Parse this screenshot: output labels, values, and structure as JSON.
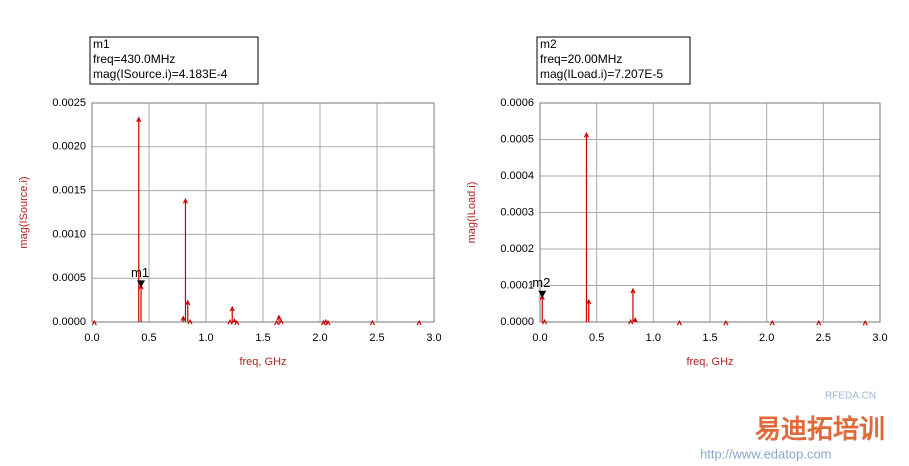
{
  "chart_data": [
    {
      "type": "stem",
      "y_label": "mag(ISource.i)",
      "x_label": "freq, GHz",
      "xlim": [
        0,
        3
      ],
      "ylim": [
        0,
        0.0025
      ],
      "grid": true,
      "xticks": [
        {
          "value": 0,
          "label": "0.0"
        },
        0.5,
        {
          "value": 1,
          "label": "1.0"
        },
        1.5,
        {
          "value": 2,
          "label": "2.0"
        },
        2.5,
        {
          "value": 3,
          "label": "3.0"
        }
      ],
      "yticks": [
        {
          "value": 0,
          "label": "0.0000"
        },
        {
          "value": 0.0005,
          "label": "0.0005"
        },
        {
          "value": 0.001,
          "label": "0.0010"
        },
        {
          "value": 0.0015,
          "label": "0.0015"
        },
        {
          "value": 0.002,
          "label": "0.0020"
        },
        {
          "value": 0.0025,
          "label": "0.0025"
        }
      ],
      "series": [
        {
          "color": "#cc0000",
          "x": [
            0.02,
            0.41,
            0.43,
            0.8,
            0.82,
            0.84,
            0.86,
            1.21,
            1.23,
            1.25,
            1.27,
            1.62,
            1.64,
            1.66,
            2.03,
            2.05,
            2.07,
            2.46,
            2.87
          ],
          "values": [
            1e-05,
            0.00233,
            0.00042,
            6e-05,
            0.0014,
            0.00024,
            2e-05,
            2e-05,
            0.00017,
            3e-05,
            1e-05,
            1e-05,
            7e-05,
            2e-05,
            1e-05,
            2e-05,
            1e-05,
            1e-05,
            1e-05
          ]
        }
      ],
      "marker": {
        "name": "m1",
        "x": 0.43,
        "y": 0.0004183,
        "lines": [
          "m1",
          "freq=430.0MHz",
          "mag(ISource.i)=4.183E-4"
        ]
      }
    },
    {
      "type": "stem",
      "y_label": "mag(ILoad.i)",
      "x_label": "freq, GHz",
      "xlim": [
        0,
        3
      ],
      "ylim": [
        0,
        0.0006
      ],
      "grid": true,
      "xticks": [
        {
          "value": 0,
          "label": "0.0"
        },
        0.5,
        {
          "value": 1,
          "label": "1.0"
        },
        1.5,
        {
          "value": 2,
          "label": "2.0"
        },
        2.5,
        {
          "value": 3,
          "label": "3.0"
        }
      ],
      "yticks": [
        {
          "value": 0,
          "label": "0.0000"
        },
        0.0001,
        0.0002,
        0.0003,
        0.0004,
        0.0005,
        0.0006
      ],
      "series": [
        {
          "color": "#cc0000",
          "x": [
            0.02,
            0.04,
            0.41,
            0.43,
            0.8,
            0.82,
            0.84,
            1.23,
            1.64,
            2.05,
            2.46,
            2.87
          ],
          "values": [
            7.2e-05,
            5e-06,
            0.000517,
            6e-05,
            5e-06,
            9e-05,
            1e-05,
            2e-06,
            2e-06,
            2e-06,
            2e-06,
            2e-06
          ]
        }
      ],
      "marker": {
        "name": "m2",
        "x": 0.02,
        "y": 7.207e-05,
        "lines": [
          "m2",
          "freq=20.00MHz",
          "mag(ILoad.i)=7.207E-5"
        ]
      }
    }
  ],
  "watermark": {
    "site": "RFEDA.CN",
    "brand": "易迪拓培训",
    "url": "http://www.edatop.com"
  }
}
